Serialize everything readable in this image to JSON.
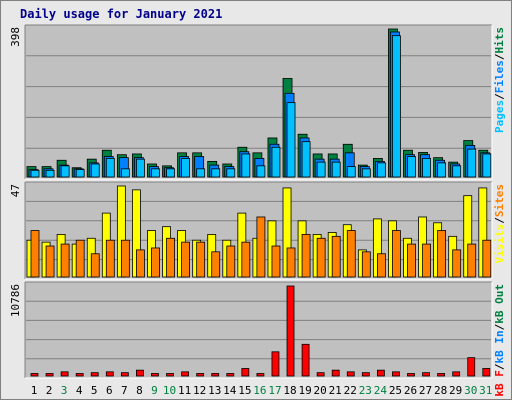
{
  "title": "Daily usage for January 2021",
  "colors": {
    "hits": "#008040",
    "files": "#0080ff",
    "pages": "#00c0ff",
    "visits": "#ffff00",
    "sites": "#ff8000",
    "kbytes": "#ff0000",
    "weekend_label": "#008040",
    "weekday_label": "#000000",
    "panel_bg": "#c0c0c0",
    "frame_bg": "#e8e8e8"
  },
  "chart_data": [
    {
      "type": "bar",
      "panel": "top",
      "ymax_label": "398",
      "ylim": [
        0,
        398
      ],
      "legend": [
        {
          "text": "Pages",
          "color": "#00c0ff"
        },
        {
          "text": "Files",
          "color": "#0080ff"
        },
        {
          "text": "Hits",
          "color": "#008040"
        }
      ],
      "series": [
        {
          "name": "Hits",
          "values": [
            28,
            28,
            45,
            25,
            48,
            72,
            60,
            62,
            35,
            30,
            65,
            65,
            42,
            35,
            80,
            65,
            105,
            265,
            115,
            62,
            62,
            88,
            32,
            50,
            398,
            72,
            66,
            52,
            40,
            98,
            72
          ]
        },
        {
          "name": "Files",
          "values": [
            20,
            22,
            32,
            22,
            38,
            55,
            52,
            52,
            28,
            25,
            55,
            55,
            32,
            28,
            68,
            50,
            88,
            225,
            105,
            48,
            48,
            65,
            28,
            42,
            390,
            60,
            60,
            45,
            35,
            85,
            65
          ]
        },
        {
          "name": "Pages",
          "values": [
            18,
            18,
            30,
            20,
            35,
            50,
            22,
            48,
            22,
            22,
            50,
            22,
            22,
            22,
            62,
            30,
            80,
            200,
            95,
            40,
            40,
            28,
            22,
            38,
            380,
            55,
            50,
            38,
            30,
            75,
            62
          ]
        }
      ]
    },
    {
      "type": "bar",
      "panel": "middle",
      "ymax_label": "47",
      "ylim": [
        0,
        47
      ],
      "legend": [
        {
          "text": "Visits",
          "color": "#ffff00"
        },
        {
          "text": "Sites",
          "color": "#ff8000"
        }
      ],
      "series": [
        {
          "name": "Sites",
          "values": [
            24,
            16,
            17,
            19,
            12,
            19,
            19,
            14,
            15,
            20,
            18,
            18,
            13,
            16,
            18,
            31,
            16,
            15,
            22,
            20,
            21,
            24,
            13,
            12,
            24,
            17,
            17,
            24,
            14,
            17,
            19
          ]
        },
        {
          "name": "Visits",
          "values": [
            19,
            18,
            22,
            17,
            20,
            33,
            47,
            45,
            24,
            26,
            24,
            19,
            22,
            19,
            33,
            20,
            29,
            46,
            29,
            22,
            23,
            27,
            14,
            30,
            29,
            20,
            31,
            28,
            21,
            42,
            46
          ]
        }
      ]
    },
    {
      "type": "bar",
      "panel": "bottom",
      "ymax_label": "10786",
      "ylim": [
        0,
        10786
      ],
      "legend": [
        {
          "text": "kB F",
          "color": "#ff0000"
        },
        {
          "text": "kB In",
          "color": "#0080ff"
        },
        {
          "text": "kB Out",
          "color": "#008040"
        }
      ],
      "series": [
        {
          "name": "kB F",
          "values": [
            300,
            300,
            500,
            300,
            400,
            500,
            400,
            700,
            300,
            300,
            500,
            300,
            300,
            300,
            900,
            300,
            2900,
            10786,
            3800,
            400,
            700,
            500,
            400,
            700,
            500,
            300,
            400,
            300,
            500,
            2200,
            900
          ]
        }
      ]
    }
  ],
  "x_labels": [
    "1",
    "2",
    "3",
    "4",
    "5",
    "6",
    "7",
    "8",
    "9",
    "10",
    "11",
    "12",
    "13",
    "14",
    "15",
    "16",
    "17",
    "18",
    "19",
    "20",
    "21",
    "22",
    "23",
    "24",
    "25",
    "26",
    "27",
    "28",
    "29",
    "30",
    "31"
  ],
  "weekend_days": [
    3,
    9,
    10,
    16,
    17,
    23,
    24,
    30,
    31
  ]
}
